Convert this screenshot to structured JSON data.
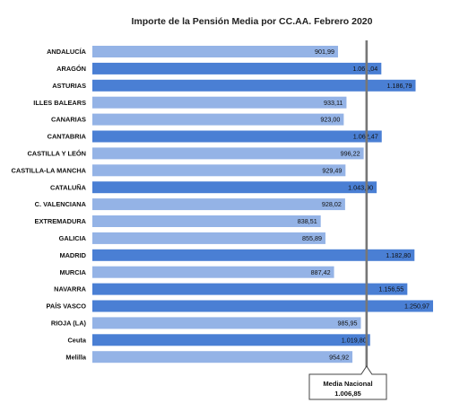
{
  "chart_data": {
    "type": "bar",
    "orientation": "horizontal",
    "title": "Importe de la Pensión Media  por CC.AA. Febrero 2020",
    "categories": [
      "ANDALUCÍA",
      "ARAGÓN",
      "ASTURIAS",
      "ILLES BALEARS",
      "CANARIAS",
      "CANTABRIA",
      "CASTILLA Y LEÓN",
      "CASTILLA-LA MANCHA",
      "CATALUÑA",
      "C. VALENCIANA",
      "EXTREMADURA",
      "GALICIA",
      "MADRID",
      "MURCIA",
      "NAVARRA",
      "PAÍS VASCO",
      "RIOJA (LA)",
      "Ceuta",
      "Melilla"
    ],
    "values": [
      901.99,
      1061.04,
      1186.79,
      933.11,
      923.0,
      1062.47,
      996.22,
      929.49,
      1043.9,
      928.02,
      838.51,
      855.89,
      1182.8,
      887.42,
      1156.55,
      1250.97,
      985.95,
      1019.8,
      954.92
    ],
    "value_labels": [
      "901,99",
      "1.061,04",
      "1.186,79",
      "933,11",
      "923,00",
      "1.062,47",
      "996,22",
      "929,49",
      "1.043,90",
      "928,02",
      "838,51",
      "855,89",
      "1.182,80",
      "887,42",
      "1.156,55",
      "1.250,97",
      "985,95",
      "1.019,80",
      "954,92"
    ],
    "above_average_flags": [
      false,
      true,
      true,
      false,
      false,
      true,
      false,
      false,
      true,
      false,
      false,
      false,
      true,
      false,
      true,
      true,
      false,
      true,
      false
    ],
    "reference_line": {
      "label": "Media Nacional",
      "value": 1006.85,
      "value_label": "1.006,85"
    },
    "xlim": [
      0,
      1250.97
    ],
    "grid": false,
    "legend": "none",
    "colors": {
      "above_average": "#4a7fd4",
      "below_average": "#94b3e6",
      "reference_line": "#777777",
      "title": "#222222"
    }
  }
}
